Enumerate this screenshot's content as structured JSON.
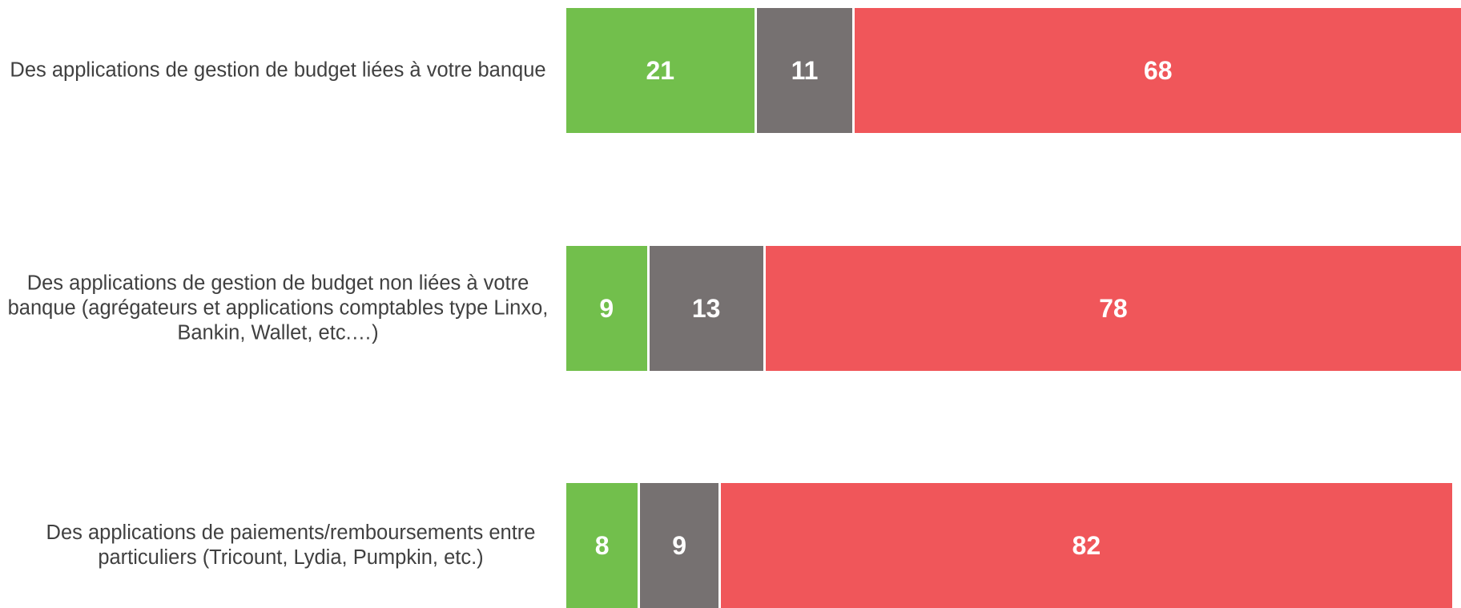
{
  "chart_data": {
    "type": "stacked-barh",
    "categories": [
      "Des applications de gestion de budget liées à votre banque",
      "Des applications de gestion de budget non liées à votre banque (agrégateurs et applications comptables type Linxo, Bankin, Wallet, etc.…)",
      "Des applications de paiements/remboursements entre particuliers (Tricount, Lydia, Pumpkin, etc.)"
    ],
    "series": [
      {
        "color": "#72bf4c",
        "values": [
          21,
          9,
          8
        ]
      },
      {
        "color": "#767171",
        "values": [
          11,
          13,
          9
        ]
      },
      {
        "color": "#f0565a",
        "values": [
          68,
          78,
          82
        ]
      }
    ],
    "xlim": [
      0,
      100
    ]
  }
}
